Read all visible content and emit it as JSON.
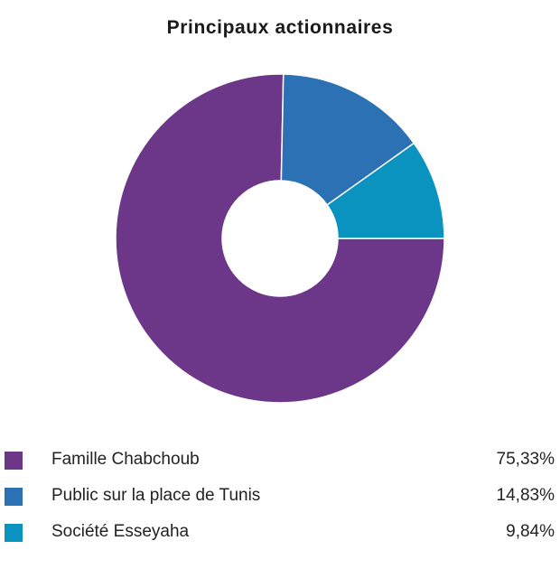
{
  "chart_data": {
    "type": "pie",
    "title": "Principaux actionnaires",
    "categories": [
      "Famille Chabchoub",
      "Public sur la place de Tunis",
      "Société Esseyaha"
    ],
    "values": [
      75.33,
      14.83,
      9.84
    ],
    "value_labels": [
      "75,33%",
      "14,83%",
      "9,84%"
    ],
    "colors": [
      "#6d3789",
      "#2b71b3",
      "#0a93bf"
    ],
    "donut": true,
    "legend_placement": "bottom"
  }
}
